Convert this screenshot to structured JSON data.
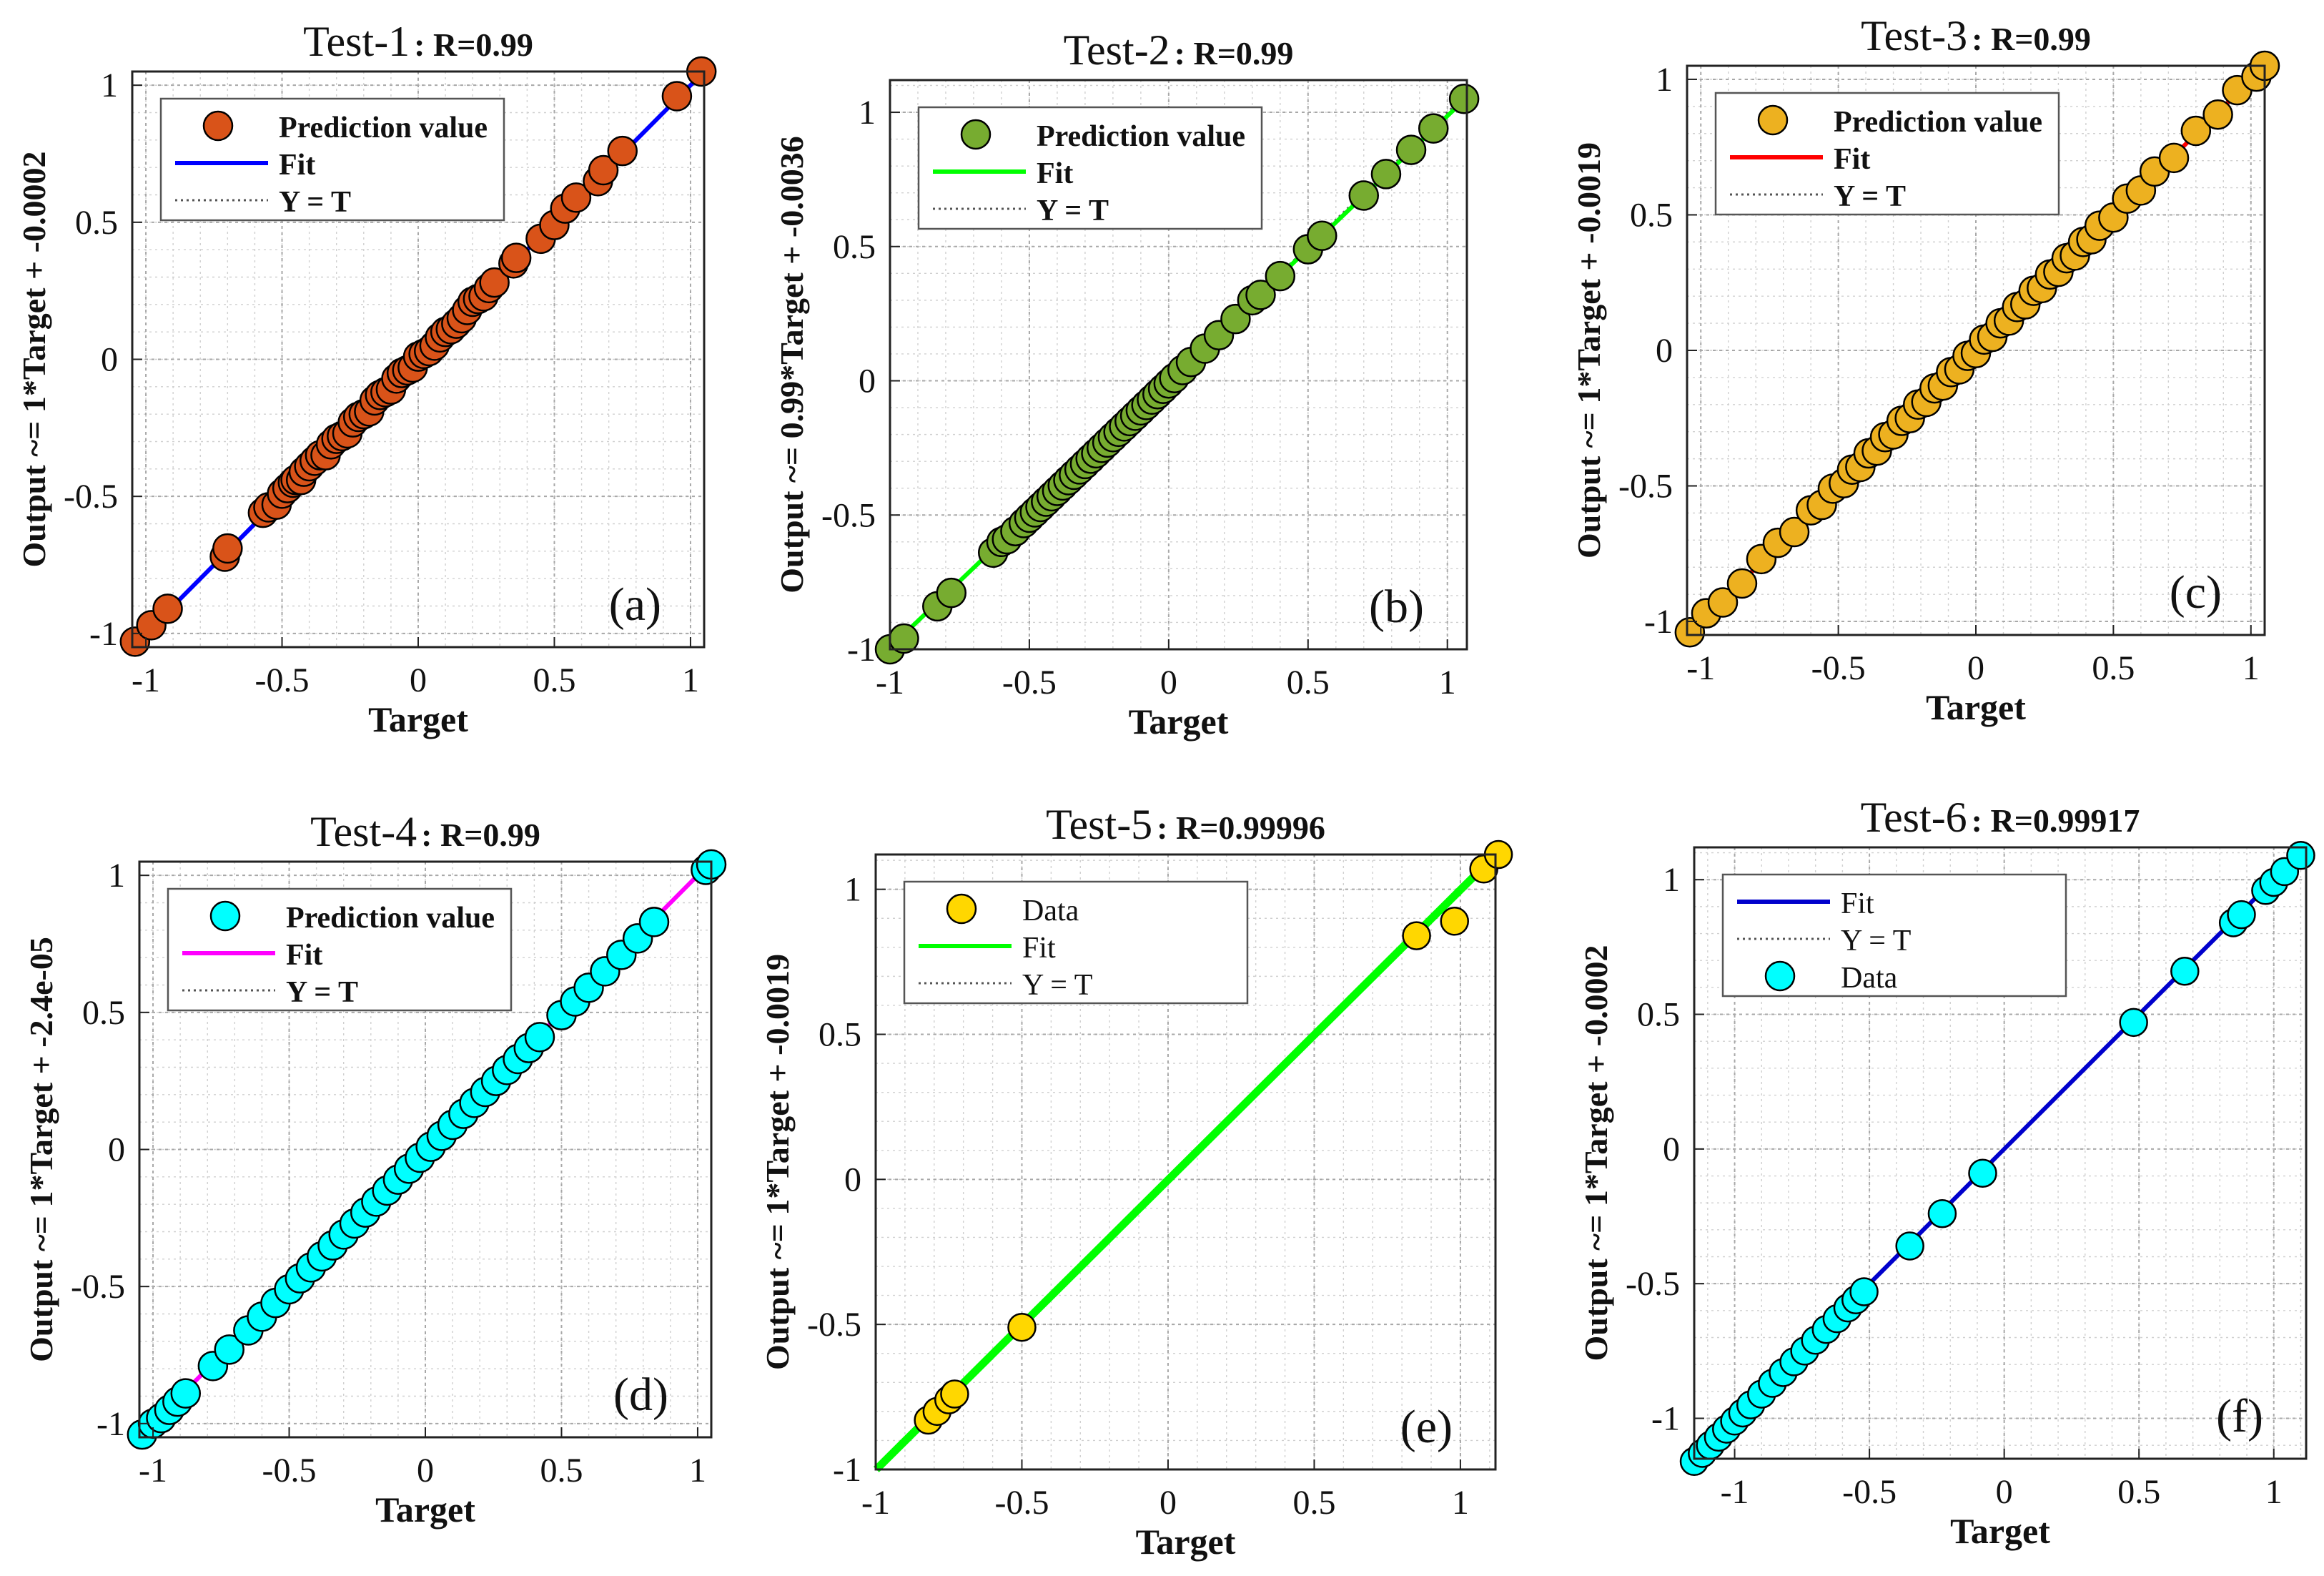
{
  "figure": {
    "common": {
      "xlabel": "Target",
      "ticks": [
        "-1",
        "-0.5",
        "0",
        "0.5",
        "1"
      ]
    }
  },
  "chart_data": [
    {
      "type": "scatter",
      "title": "Test-1",
      "r_label": ": R=0.99",
      "panel_label": "(a)",
      "xlabel": "Target",
      "ylabel": "Output ~= 1*Target + -0.0002",
      "xlim": [
        -1.05,
        1.05
      ],
      "ylim": [
        -1.05,
        1.05
      ],
      "grid": true,
      "legend_position": "top-left",
      "legend": [
        "Prediction value",
        "Fit",
        "Y = T"
      ],
      "marker_color": "#D95319",
      "fit_color": "#0000FF",
      "fit": {
        "slope": 1,
        "intercept": -0.0002
      },
      "series": [
        {
          "x": [
            -1.04,
            -0.98,
            -0.92,
            -0.71,
            -0.7,
            -0.57,
            -0.55,
            -0.52,
            -0.5,
            -0.48,
            -0.46,
            -0.45,
            -0.43,
            -0.42,
            -0.4,
            -0.38,
            -0.36,
            -0.34,
            -0.32,
            -0.3,
            -0.28,
            -0.26,
            -0.24,
            -0.22,
            -0.2,
            -0.18,
            -0.16,
            -0.14,
            -0.12,
            -0.1,
            -0.08,
            -0.06,
            -0.04,
            -0.02,
            0,
            0.02,
            0.04,
            0.06,
            0.08,
            0.1,
            0.12,
            0.14,
            0.16,
            0.18,
            0.2,
            0.22,
            0.24,
            0.26,
            0.28,
            0.35,
            0.36,
            0.45,
            0.5,
            0.54,
            0.58,
            0.66,
            0.68,
            0.75,
            0.95,
            1.04
          ],
          "y": [
            -1.03,
            -0.97,
            -0.91,
            -0.72,
            -0.69,
            -0.56,
            -0.54,
            -0.53,
            -0.49,
            -0.47,
            -0.45,
            -0.44,
            -0.44,
            -0.41,
            -0.39,
            -0.37,
            -0.35,
            -0.35,
            -0.31,
            -0.29,
            -0.28,
            -0.27,
            -0.23,
            -0.21,
            -0.2,
            -0.19,
            -0.15,
            -0.13,
            -0.12,
            -0.11,
            -0.07,
            -0.05,
            -0.04,
            -0.03,
            0.01,
            0.02,
            0.03,
            0.05,
            0.08,
            0.1,
            0.11,
            0.13,
            0.15,
            0.18,
            0.21,
            0.22,
            0.23,
            0.26,
            0.28,
            0.35,
            0.37,
            0.44,
            0.49,
            0.55,
            0.59,
            0.65,
            0.69,
            0.76,
            0.96,
            1.05
          ]
        }
      ]
    },
    {
      "type": "scatter",
      "title": "Test-2",
      "r_label": ": R=0.99",
      "panel_label": "(b)",
      "xlabel": "Target",
      "ylabel": "Output ~= 0.99*Target + -0.0036",
      "xlim": [
        -1.0,
        1.07
      ],
      "ylim": [
        -1.0,
        1.12
      ],
      "grid": true,
      "legend_position": "top-left",
      "legend": [
        "Prediction value",
        "Fit",
        "Y = T"
      ],
      "marker_color": "#77AC30",
      "fit_color": "#00FF00",
      "fit": {
        "slope": 0.99,
        "intercept": -0.0036
      },
      "series": [
        {
          "x": [
            -1.0,
            -0.95,
            -0.83,
            -0.78,
            -0.63,
            -0.6,
            -0.58,
            -0.55,
            -0.52,
            -0.5,
            -0.48,
            -0.46,
            -0.44,
            -0.42,
            -0.4,
            -0.38,
            -0.36,
            -0.34,
            -0.32,
            -0.3,
            -0.28,
            -0.26,
            -0.24,
            -0.22,
            -0.2,
            -0.18,
            -0.16,
            -0.14,
            -0.12,
            -0.1,
            -0.08,
            -0.06,
            -0.04,
            -0.02,
            0,
            0.02,
            0.05,
            0.08,
            0.13,
            0.18,
            0.24,
            0.3,
            0.33,
            0.4,
            0.5,
            0.55,
            0.7,
            0.78,
            0.87,
            0.95,
            1.06
          ],
          "y": [
            -1.0,
            -0.96,
            -0.84,
            -0.79,
            -0.64,
            -0.6,
            -0.59,
            -0.56,
            -0.53,
            -0.51,
            -0.49,
            -0.47,
            -0.45,
            -0.43,
            -0.41,
            -0.39,
            -0.37,
            -0.35,
            -0.33,
            -0.31,
            -0.29,
            -0.27,
            -0.25,
            -0.23,
            -0.21,
            -0.19,
            -0.17,
            -0.15,
            -0.13,
            -0.11,
            -0.09,
            -0.07,
            -0.05,
            -0.03,
            -0.01,
            0.01,
            0.04,
            0.07,
            0.12,
            0.17,
            0.23,
            0.3,
            0.32,
            0.39,
            0.49,
            0.54,
            0.69,
            0.77,
            0.86,
            0.94,
            1.05
          ]
        }
      ]
    },
    {
      "type": "scatter",
      "title": "Test-3",
      "r_label": ": R=0.99",
      "panel_label": "(c)",
      "xlabel": "Target",
      "ylabel": "Output ~= 1*Target + -0.0019",
      "xlim": [
        -1.05,
        1.05
      ],
      "ylim": [
        -1.05,
        1.05
      ],
      "grid": true,
      "legend_position": "top-left",
      "legend": [
        "Prediction value",
        "Fit",
        "Y = T"
      ],
      "marker_color": "#EDB120",
      "fit_color": "#FF0000",
      "fit": {
        "slope": 1,
        "intercept": -0.0019
      },
      "series": [
        {
          "x": [
            -1.04,
            -0.98,
            -0.92,
            -0.85,
            -0.78,
            -0.72,
            -0.66,
            -0.6,
            -0.56,
            -0.52,
            -0.48,
            -0.45,
            -0.42,
            -0.39,
            -0.36,
            -0.33,
            -0.3,
            -0.27,
            -0.24,
            -0.21,
            -0.18,
            -0.15,
            -0.12,
            -0.09,
            -0.06,
            -0.03,
            0,
            0.03,
            0.06,
            0.09,
            0.12,
            0.15,
            0.18,
            0.21,
            0.24,
            0.27,
            0.3,
            0.33,
            0.36,
            0.39,
            0.42,
            0.45,
            0.5,
            0.55,
            0.6,
            0.65,
            0.72,
            0.8,
            0.88,
            0.95,
            1.02,
            1.05
          ],
          "y": [
            -1.04,
            -0.97,
            -0.93,
            -0.86,
            -0.77,
            -0.71,
            -0.67,
            -0.59,
            -0.57,
            -0.51,
            -0.49,
            -0.44,
            -0.43,
            -0.38,
            -0.37,
            -0.32,
            -0.31,
            -0.26,
            -0.25,
            -0.2,
            -0.19,
            -0.14,
            -0.13,
            -0.08,
            -0.07,
            -0.02,
            -0.01,
            0.04,
            0.05,
            0.1,
            0.11,
            0.16,
            0.17,
            0.22,
            0.23,
            0.28,
            0.29,
            0.34,
            0.35,
            0.4,
            0.41,
            0.46,
            0.49,
            0.56,
            0.59,
            0.66,
            0.71,
            0.81,
            0.87,
            0.96,
            1.01,
            1.05
          ]
        }
      ]
    },
    {
      "type": "scatter",
      "title": "Test-4",
      "r_label": ": R=0.99",
      "panel_label": "(d)",
      "xlabel": "Target",
      "ylabel": "Output ~= 1*Target + -2.4e-05",
      "xlim": [
        -1.05,
        1.05
      ],
      "ylim": [
        -1.05,
        1.05
      ],
      "grid": true,
      "legend_position": "top-left",
      "legend": [
        "Prediction value",
        "Fit",
        "Y = T"
      ],
      "marker_color": "#00FFFF",
      "fit_color": "#FF00FF",
      "fit": {
        "slope": 1,
        "intercept": -2.4e-05
      },
      "series": [
        {
          "x": [
            -1.04,
            -1.0,
            -0.97,
            -0.94,
            -0.91,
            -0.88,
            -0.78,
            -0.72,
            -0.65,
            -0.6,
            -0.55,
            -0.5,
            -0.46,
            -0.42,
            -0.38,
            -0.34,
            -0.3,
            -0.26,
            -0.22,
            -0.18,
            -0.14,
            -0.1,
            -0.06,
            -0.02,
            0.02,
            0.06,
            0.1,
            0.14,
            0.18,
            0.22,
            0.26,
            0.3,
            0.34,
            0.38,
            0.42,
            0.5,
            0.55,
            0.6,
            0.66,
            0.72,
            0.78,
            0.84,
            1.03,
            1.05
          ],
          "y": [
            -1.04,
            -1.0,
            -0.98,
            -0.95,
            -0.92,
            -0.89,
            -0.79,
            -0.73,
            -0.66,
            -0.61,
            -0.56,
            -0.51,
            -0.47,
            -0.43,
            -0.39,
            -0.35,
            -0.31,
            -0.27,
            -0.23,
            -0.19,
            -0.15,
            -0.11,
            -0.07,
            -0.03,
            0.01,
            0.05,
            0.09,
            0.13,
            0.17,
            0.21,
            0.25,
            0.29,
            0.33,
            0.37,
            0.41,
            0.49,
            0.54,
            0.59,
            0.65,
            0.71,
            0.77,
            0.83,
            1.02,
            1.04
          ]
        }
      ]
    },
    {
      "type": "scatter",
      "title": "Test-5",
      "r_label": ": R=0.99996",
      "panel_label": "(e)",
      "xlabel": "Target",
      "ylabel": "Output ~= 1*Target + -0.0019",
      "xlim": [
        -1.0,
        1.12
      ],
      "ylim": [
        -1.0,
        1.12
      ],
      "grid": true,
      "legend_position": "top-left",
      "legend": [
        "Data",
        "Fit",
        "Y = T"
      ],
      "marker_color": "#FFD700",
      "fit_color": "#00FF00",
      "fit": {
        "slope": 1,
        "intercept": -0.0019
      },
      "series": [
        {
          "x": [
            -0.82,
            -0.79,
            -0.75,
            -0.73,
            -0.5,
            0.85,
            0.98,
            1.08,
            1.13
          ],
          "y": [
            -0.83,
            -0.8,
            -0.76,
            -0.74,
            -0.51,
            0.84,
            0.89,
            1.07,
            1.12
          ]
        }
      ]
    },
    {
      "type": "scatter",
      "title": "Test-6",
      "r_label": ": R=0.99917",
      "panel_label": "(f)",
      "xlabel": "Target",
      "ylabel": "Output ~= 1*Target + -0.0002",
      "xlim": [
        -1.15,
        1.12
      ],
      "ylim": [
        -1.15,
        1.12
      ],
      "grid": true,
      "legend_position": "top-left",
      "legend": [
        "Fit",
        "Y = T",
        "Data"
      ],
      "marker_color": "#00FFFF",
      "fit_color": "#0000CC",
      "fit": {
        "slope": 1,
        "intercept": -0.0002
      },
      "series": [
        {
          "x": [
            -1.15,
            -1.12,
            -1.09,
            -1.06,
            -1.03,
            -1.0,
            -0.97,
            -0.94,
            -0.9,
            -0.86,
            -0.82,
            -0.78,
            -0.74,
            -0.7,
            -0.66,
            -0.62,
            -0.58,
            -0.55,
            -0.52,
            -0.35,
            -0.23,
            -0.08,
            0.48,
            0.67,
            0.85,
            0.88,
            0.97,
            1.0,
            1.04,
            1.1
          ],
          "y": [
            -1.16,
            -1.13,
            -1.1,
            -1.07,
            -1.04,
            -1.01,
            -0.98,
            -0.95,
            -0.91,
            -0.87,
            -0.83,
            -0.79,
            -0.75,
            -0.71,
            -0.67,
            -0.63,
            -0.59,
            -0.56,
            -0.53,
            -0.36,
            -0.24,
            -0.09,
            0.47,
            0.66,
            0.84,
            0.87,
            0.96,
            0.99,
            1.03,
            1.09
          ]
        }
      ]
    }
  ]
}
